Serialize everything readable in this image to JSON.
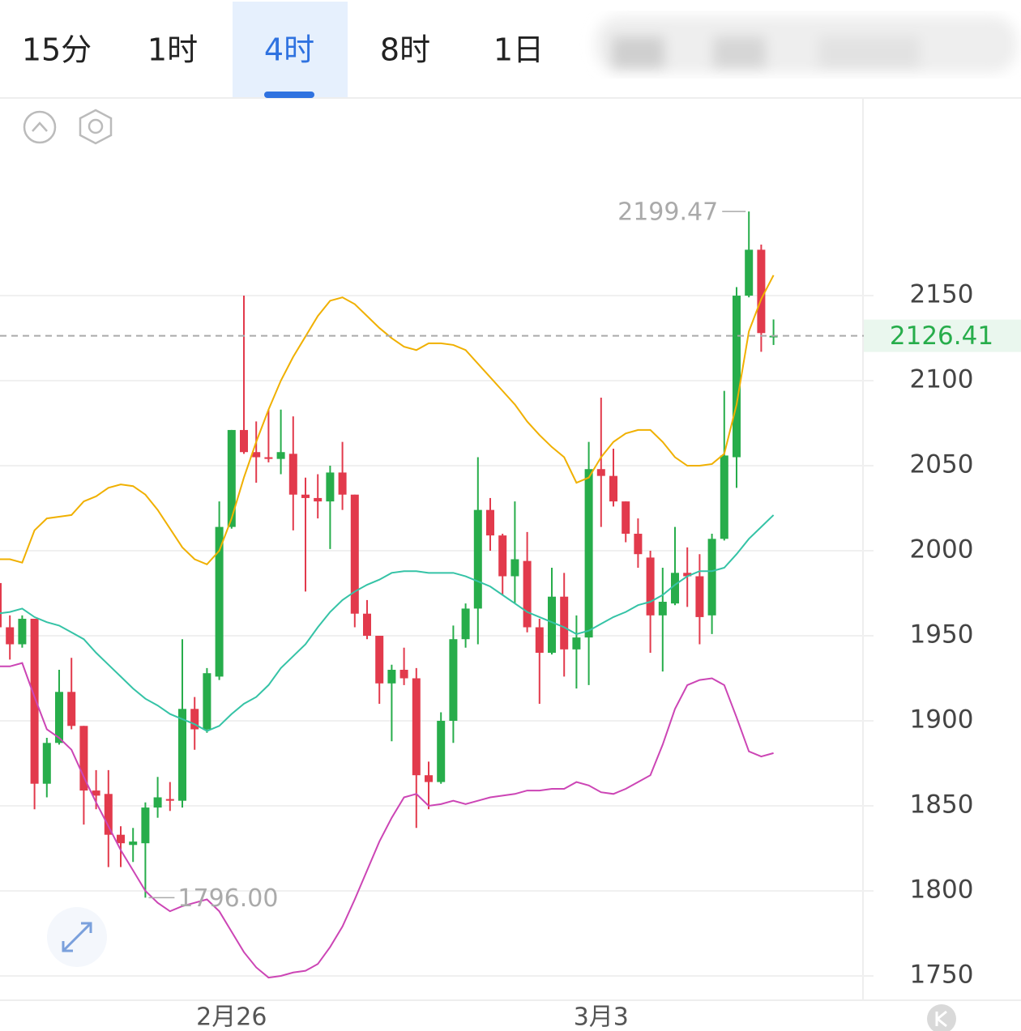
{
  "tabs": [
    "15分",
    "1时",
    "4时",
    "8时",
    "1日"
  ],
  "selected_tab": 2,
  "chart_data": {
    "type": "candlestick",
    "categories": [
      null,
      null,
      null,
      null,
      null,
      null,
      null,
      null,
      null,
      null,
      null,
      null,
      null,
      null,
      null,
      null,
      null,
      null,
      null,
      "2月26",
      null,
      null,
      null,
      null,
      null,
      null,
      null,
      null,
      null,
      null,
      null,
      null,
      null,
      null,
      null,
      null,
      null,
      null,
      null,
      null,
      null,
      null,
      null,
      null,
      null,
      null,
      null,
      null,
      null,
      "3月3",
      null,
      null,
      null,
      null,
      null,
      null,
      null,
      null,
      null,
      null,
      null,
      null,
      null,
      null
    ],
    "open": [
      1981,
      1955,
      1945,
      1960,
      1863,
      1887,
      1917,
      1897,
      1859,
      1857,
      1833,
      1827,
      1828,
      1849,
      1854,
      1853,
      1907,
      1895,
      1926,
      2014,
      2071,
      2058,
      2055,
      2054,
      2057,
      2033,
      2031,
      2029,
      2046,
      2033,
      1963,
      1950,
      1922,
      1930,
      1925,
      1868,
      1864,
      1900,
      1948,
      1966,
      2024,
      2009,
      1985,
      1994,
      1955,
      1940,
      1973,
      1942,
      1949,
      2048,
      2044,
      2029,
      2010,
      1996,
      1962,
      1969,
      1987,
      1985,
      1962,
      2007,
      2055,
      2150,
      2177,
      2126
    ],
    "high": [
      1983,
      1962,
      1962,
      1960,
      1890,
      1930,
      1937,
      1897,
      1871,
      1871,
      1838,
      1837,
      1852,
      1867,
      1864,
      1948,
      1914,
      1931,
      2029,
      2071,
      2150,
      2076,
      2083,
      2083,
      2079,
      2043,
      2045,
      2050,
      2064,
      2033,
      1971,
      1950,
      1933,
      1943,
      1931,
      1876,
      1905,
      1956,
      1969,
      2055,
      2031,
      2010,
      2029,
      2011,
      1960,
      1990,
      1987,
      1962,
      2064,
      2090,
      2060,
      2029,
      2019,
      2000,
      1990,
      2014,
      2002,
      1998,
      2010,
      2094,
      2155,
      2199.47,
      2180,
      2136
    ],
    "low": [
      1952,
      1936,
      1943,
      1848,
      1855,
      1886,
      1895,
      1839,
      1848,
      1814,
      1814,
      1817,
      1796,
      1843,
      1847,
      1849,
      1883,
      1893,
      1924,
      2013,
      2057,
      2040,
      2052,
      2045,
      2012,
      1976,
      2019,
      2001,
      2024,
      1955,
      1948,
      1910,
      1888,
      1921,
      1837,
      1848,
      1863,
      1887,
      1943,
      1945,
      2000,
      1974,
      1969,
      1952,
      1910,
      1939,
      1926,
      1919,
      1921,
      2014,
      2026,
      2005,
      1990,
      1940,
      1929,
      1968,
      1967,
      1945,
      1951,
      2006,
      2037,
      2149,
      2117,
      2121
    ],
    "close": [
      1955,
      1945,
      1960,
      1863,
      1887,
      1917,
      1897,
      1859,
      1856,
      1833,
      1828,
      1829,
      1849,
      1855,
      1853,
      1907,
      1895,
      1928,
      2014,
      2071,
      2058,
      2055,
      2054,
      2058,
      2033,
      2031,
      2029,
      2046,
      2033,
      1963,
      1950,
      1922,
      1930,
      1925,
      1868,
      1864,
      1900,
      1948,
      1966,
      2024,
      2009,
      1985,
      1995,
      1955,
      1940,
      1973,
      1942,
      1949,
      2048,
      2044,
      2029,
      2010,
      1998,
      1962,
      1970,
      1987,
      1985,
      1961,
      2007,
      2056,
      2150,
      2177,
      2128,
      2126.41
    ],
    "up_color": "#27ad4b",
    "down_color": "#e23a4c",
    "overlays": [
      {
        "color": "#f0b000",
        "values": [
          1995,
          1995,
          1993,
          2012,
          2019,
          2020,
          2021,
          2029,
          2032,
          2037,
          2039,
          2038,
          2033,
          2024,
          2013,
          2002,
          1995,
          1992,
          2000,
          2019,
          2043,
          2064,
          2083,
          2100,
          2114,
          2126,
          2138,
          2147,
          2149,
          2145,
          2138,
          2131,
          2125,
          2120,
          2118,
          2122,
          2122,
          2121,
          2118,
          2110,
          2102,
          2094,
          2086,
          2076,
          2068,
          2061,
          2055,
          2040,
          2043,
          2055,
          2064,
          2069,
          2071,
          2071,
          2064,
          2055,
          2050,
          2050,
          2051,
          2057,
          2086,
          2129,
          2148,
          2162
        ]
      },
      {
        "color": "#35c3a6",
        "values": [
          1963,
          1964,
          1966,
          1961,
          1958,
          1956,
          1952,
          1948,
          1940,
          1933,
          1926,
          1919,
          1913,
          1909,
          1904,
          1901,
          1898,
          1894,
          1897,
          1904,
          1910,
          1914,
          1921,
          1931,
          1938,
          1945,
          1955,
          1964,
          1971,
          1976,
          1980,
          1983,
          1987,
          1988,
          1988,
          1987,
          1987,
          1987,
          1985,
          1982,
          1979,
          1974,
          1969,
          1964,
          1961,
          1958,
          1955,
          1951,
          1953,
          1957,
          1961,
          1964,
          1968,
          1970,
          1974,
          1980,
          1985,
          1988,
          1988,
          1990,
          1998,
          2007,
          2014,
          2021
        ]
      },
      {
        "color": "#cc45b5",
        "values": [
          1932,
          1932,
          1934,
          1914,
          1895,
          1890,
          1883,
          1867,
          1852,
          1838,
          1824,
          1812,
          1800,
          1793,
          1788,
          1791,
          1793,
          1795,
          1788,
          1776,
          1764,
          1755,
          1749,
          1750,
          1752,
          1753,
          1757,
          1767,
          1779,
          1795,
          1812,
          1829,
          1843,
          1855,
          1857,
          1850,
          1851,
          1853,
          1851,
          1853,
          1855,
          1856,
          1857,
          1859,
          1859,
          1860,
          1860,
          1864,
          1862,
          1858,
          1857,
          1860,
          1864,
          1868,
          1886,
          1907,
          1921,
          1924,
          1925,
          1921,
          1902,
          1882,
          1879,
          1881
        ]
      }
    ],
    "ylim": [
      1735.7,
      2266.7
    ],
    "yticks": [
      1750,
      1800,
      1850,
      1900,
      1950,
      2000,
      2050,
      2100,
      2150
    ],
    "grid": true,
    "last_price": 2126.41,
    "high_label": 2199.47,
    "low_label": {
      "value": 1796,
      "label": "1796.00"
    }
  }
}
